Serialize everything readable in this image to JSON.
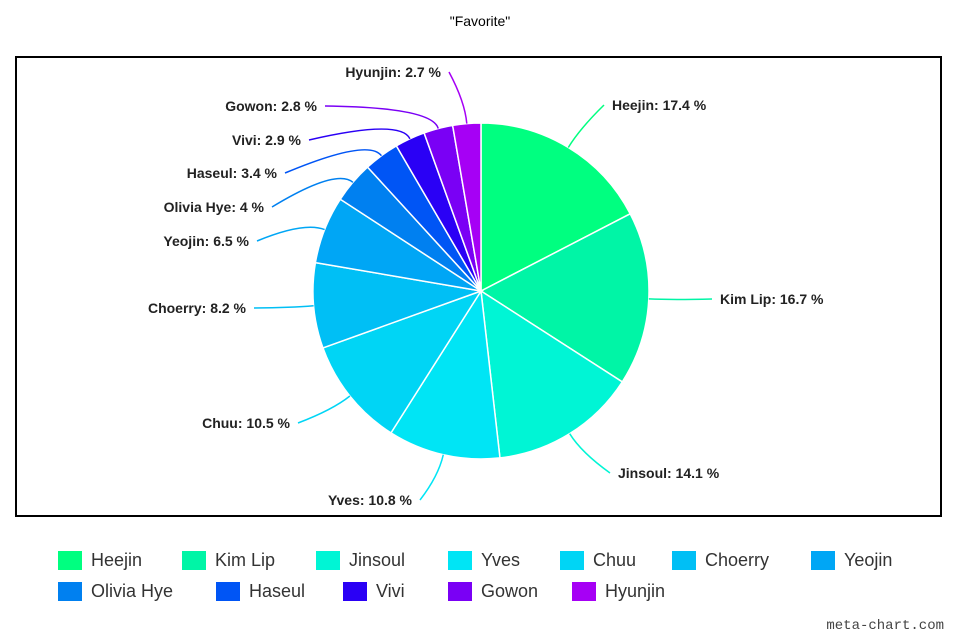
{
  "chart_data": {
    "type": "pie",
    "title": "\"Favorite\"",
    "legend_position": "bottom",
    "unit": "%",
    "slices": [
      {
        "label": "Heejin",
        "value": 17.4,
        "display": "Heejin: 17.4 %",
        "color": "#00ff80"
      },
      {
        "label": "Kim Lip",
        "value": 16.7,
        "display": "Kim Lip: 16.7 %",
        "color": "#00f5a6"
      },
      {
        "label": "Jinsoul",
        "value": 14.1,
        "display": "Jinsoul: 14.1 %",
        "color": "#00f5d5"
      },
      {
        "label": "Yves",
        "value": 10.8,
        "display": "Yves: 10.8 %",
        "color": "#00e5f5"
      },
      {
        "label": "Chuu",
        "value": 10.5,
        "display": "Chuu: 10.5 %",
        "color": "#00d5f5"
      },
      {
        "label": "Choerry",
        "value": 8.2,
        "display": "Choerry: 8.2 %",
        "color": "#00bff5"
      },
      {
        "label": "Yeojin",
        "value": 6.5,
        "display": "Yeojin: 6.5 %",
        "color": "#00a6f5"
      },
      {
        "label": "Olivia Hye",
        "value": 4,
        "display": "Olivia Hye: 4 %",
        "color": "#0080f0"
      },
      {
        "label": "Haseul",
        "value": 3.4,
        "display": "Haseul: 3.4 %",
        "color": "#0055f5"
      },
      {
        "label": "Vivi",
        "value": 2.9,
        "display": "Vivi: 2.9 %",
        "color": "#2a00f5"
      },
      {
        "label": "Gowon",
        "value": 2.8,
        "display": "Gowon: 2.8 %",
        "color": "#7a00f5"
      },
      {
        "label": "Hyunjin",
        "value": 2.7,
        "display": "Hyunjin: 2.7 %",
        "color": "#a600f5"
      }
    ]
  },
  "watermark": "meta-chart.com"
}
